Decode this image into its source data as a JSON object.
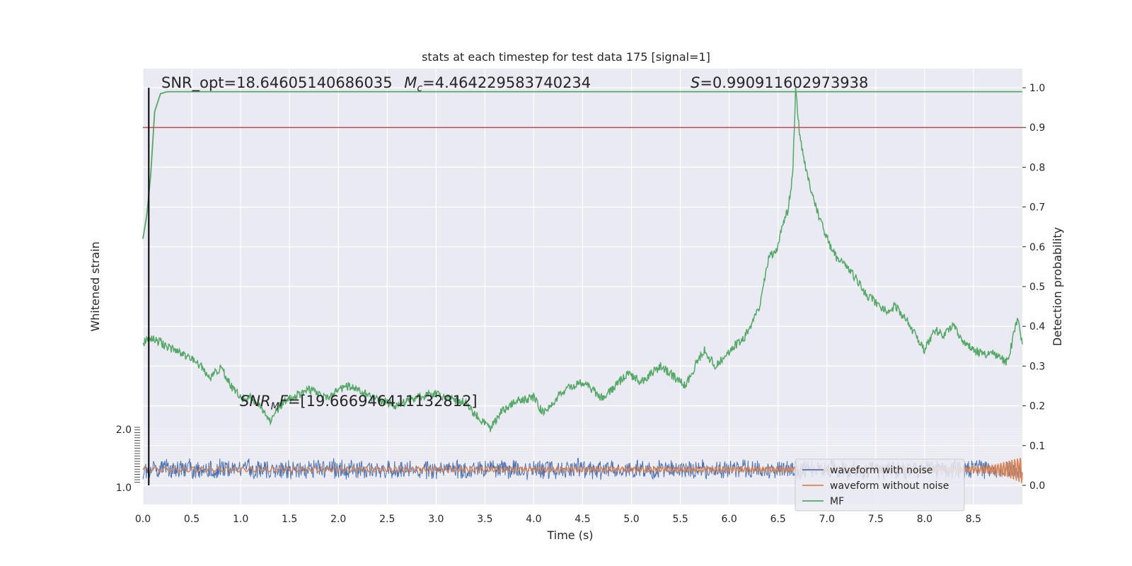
{
  "chart_data": {
    "type": "line",
    "title": "stats at each timestep for test data 175 [signal=1]",
    "xlabel": "Time (s)",
    "ylabel_left": "Whitened strain",
    "ylabel_right": "Detection probability",
    "xlim": [
      0,
      9.0
    ],
    "ylim_right": [
      -0.05,
      1.05
    ],
    "x_ticks": [
      "0.0",
      "0.5",
      "1.0",
      "1.5",
      "2.0",
      "2.5",
      "3.0",
      "3.5",
      "4.0",
      "4.5",
      "5.0",
      "5.5",
      "6.0",
      "6.5",
      "7.0",
      "7.5",
      "8.0",
      "8.5"
    ],
    "y_ticks_right": [
      "0.0",
      "0.1",
      "0.2",
      "0.3",
      "0.4",
      "0.5",
      "0.6",
      "0.7",
      "0.8",
      "0.9",
      "1.0"
    ],
    "y_ticks_left_top": "2.0",
    "y_ticks_left_bottom": "1.0",
    "annotations": {
      "snr_opt": "SNR_opt=18.64605140686035",
      "mc_symbol": "M",
      "mc_sub": "c",
      "mc_value": "=4.464229583740234",
      "s_symbol": "S",
      "s_value": "=0.990911602973938",
      "snr_mf_symbol": "SNR",
      "snr_mf_sub": "M",
      "snr_mf_f": "F",
      "snr_mf_value": "=[19.666946411132812]"
    },
    "threshold": 0.9,
    "vline_x": 0.06,
    "series": [
      {
        "name": "waveform with noise",
        "color": "#4c72b0",
        "kind": "strain_noise",
        "center": 0.04,
        "amplitude": 0.027
      },
      {
        "name": "waveform without noise",
        "color": "#dd8452",
        "kind": "strain_signal",
        "center": 0.04,
        "amplitude": 0.006,
        "chirp_end_amplitude": 0.035
      },
      {
        "name": "MF",
        "color": "#55a868",
        "kind": "mf_curve",
        "points": [
          [
            0,
            0.36
          ],
          [
            0.1,
            0.37
          ],
          [
            0.25,
            0.35
          ],
          [
            0.4,
            0.33
          ],
          [
            0.55,
            0.31
          ],
          [
            0.7,
            0.27
          ],
          [
            0.8,
            0.3
          ],
          [
            0.9,
            0.25
          ],
          [
            1.0,
            0.22
          ],
          [
            1.1,
            0.22
          ],
          [
            1.2,
            0.2
          ],
          [
            1.3,
            0.16
          ],
          [
            1.4,
            0.2
          ],
          [
            1.5,
            0.22
          ],
          [
            1.6,
            0.23
          ],
          [
            1.7,
            0.24
          ],
          [
            1.8,
            0.23
          ],
          [
            1.9,
            0.22
          ],
          [
            2.0,
            0.24
          ],
          [
            2.1,
            0.25
          ],
          [
            2.2,
            0.24
          ],
          [
            2.35,
            0.22
          ],
          [
            2.5,
            0.21
          ],
          [
            2.6,
            0.2
          ],
          [
            2.8,
            0.22
          ],
          [
            3.0,
            0.23
          ],
          [
            3.1,
            0.22
          ],
          [
            3.3,
            0.21
          ],
          [
            3.4,
            0.18
          ],
          [
            3.55,
            0.14
          ],
          [
            3.65,
            0.18
          ],
          [
            3.8,
            0.21
          ],
          [
            4.0,
            0.22
          ],
          [
            4.05,
            0.2
          ],
          [
            4.1,
            0.18
          ],
          [
            4.2,
            0.21
          ],
          [
            4.3,
            0.24
          ],
          [
            4.5,
            0.26
          ],
          [
            4.7,
            0.22
          ],
          [
            4.8,
            0.24
          ],
          [
            4.95,
            0.28
          ],
          [
            5.1,
            0.26
          ],
          [
            5.3,
            0.3
          ],
          [
            5.45,
            0.27
          ],
          [
            5.55,
            0.25
          ],
          [
            5.65,
            0.3
          ],
          [
            5.75,
            0.34
          ],
          [
            5.85,
            0.3
          ],
          [
            5.95,
            0.32
          ],
          [
            6.05,
            0.35
          ],
          [
            6.15,
            0.37
          ],
          [
            6.3,
            0.44
          ],
          [
            6.4,
            0.57
          ],
          [
            6.5,
            0.6
          ],
          [
            6.55,
            0.66
          ],
          [
            6.6,
            0.69
          ],
          [
            6.65,
            0.78
          ],
          [
            6.68,
            1.0
          ],
          [
            6.72,
            0.88
          ],
          [
            6.8,
            0.78
          ],
          [
            6.9,
            0.69
          ],
          [
            7.0,
            0.62
          ],
          [
            7.1,
            0.57
          ],
          [
            7.2,
            0.55
          ],
          [
            7.3,
            0.52
          ],
          [
            7.4,
            0.48
          ],
          [
            7.5,
            0.46
          ],
          [
            7.6,
            0.44
          ],
          [
            7.7,
            0.45
          ],
          [
            7.8,
            0.42
          ],
          [
            7.9,
            0.38
          ],
          [
            8.0,
            0.34
          ],
          [
            8.1,
            0.39
          ],
          [
            8.2,
            0.38
          ],
          [
            8.3,
            0.4
          ],
          [
            8.4,
            0.36
          ],
          [
            8.5,
            0.34
          ],
          [
            8.6,
            0.33
          ],
          [
            8.7,
            0.33
          ],
          [
            8.85,
            0.31
          ],
          [
            8.95,
            0.42
          ],
          [
            9.0,
            0.36
          ]
        ]
      },
      {
        "name": "probability",
        "color": "#55a868",
        "kind": "prob_curve",
        "points": [
          [
            0,
            0.62
          ],
          [
            0.04,
            0.68
          ],
          [
            0.08,
            0.78
          ],
          [
            0.12,
            0.94
          ],
          [
            0.18,
            0.985
          ],
          [
            0.25,
            0.99
          ],
          [
            0.35,
            0.99
          ],
          [
            9.0,
            0.99
          ]
        ]
      }
    ],
    "legend": {
      "placement": "lower-right",
      "entries": [
        "waveform with noise",
        "waveform without noise",
        "MF"
      ]
    },
    "colors": {
      "background": "#eaeaf2",
      "grid": "#ffffff",
      "threshold": "#c44e52",
      "vline": "#000000"
    }
  }
}
